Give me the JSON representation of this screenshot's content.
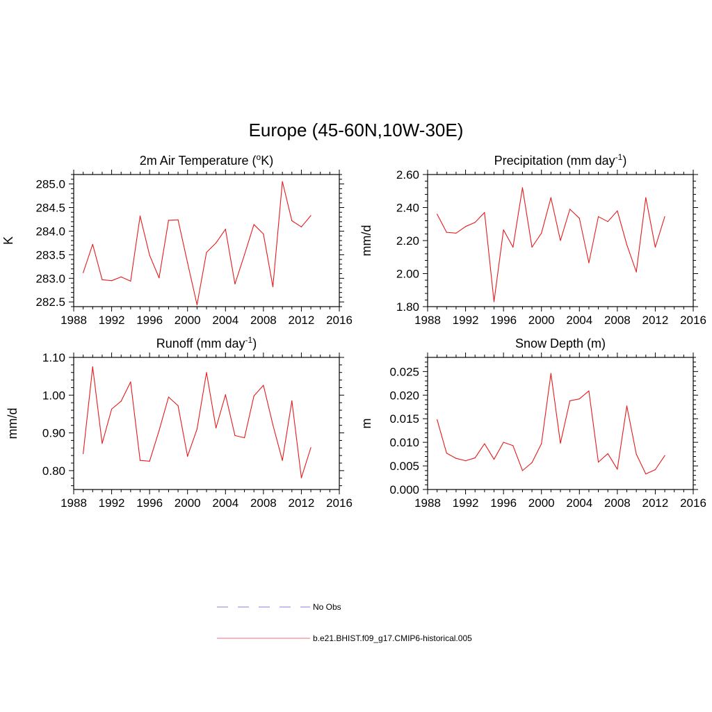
{
  "title": "Europe (45-60N,10W-30E)",
  "legend": [
    {
      "label": "No Obs",
      "color": "#9a9ae8",
      "dashed": true
    },
    {
      "label": "b.e21.BHIST.f09_g17.CMIP6-historical.005",
      "color": "#f28a96",
      "dashed": false
    }
  ],
  "chart_data": [
    {
      "type": "line",
      "title": "2m Air Temperature (",
      "title_sup": "o",
      "title_suffix": "K)",
      "ylabel": "K",
      "xlim": [
        1988,
        2016
      ],
      "ylim": [
        282.4,
        285.2
      ],
      "xticks": [
        1988,
        1992,
        1996,
        2000,
        2004,
        2008,
        2012,
        2016
      ],
      "yticks": [
        282.5,
        283.0,
        283.5,
        284.0,
        284.5,
        285.0
      ],
      "ytick_labels": [
        "282.5",
        "283.0",
        "283.5",
        "284.0",
        "284.5",
        "285.0"
      ],
      "series": [
        {
          "name": "b.e21.BHIST.f09_g17.CMIP6-historical.005",
          "color": "#e41a1c",
          "x": [
            1989,
            1990,
            1991,
            1992,
            1993,
            1994,
            1995,
            1996,
            1997,
            1998,
            1999,
            2000,
            2001,
            2002,
            2003,
            2004,
            2005,
            2006,
            2007,
            2008,
            2009,
            2010,
            2011,
            2012,
            2013
          ],
          "values": [
            283.12,
            283.72,
            282.97,
            282.95,
            283.03,
            282.94,
            284.32,
            283.49,
            283.01,
            284.23,
            284.24,
            283.33,
            282.44,
            283.55,
            283.75,
            284.04,
            282.88,
            283.5,
            284.14,
            283.94,
            282.82,
            285.05,
            284.22,
            284.09,
            284.33
          ]
        }
      ]
    },
    {
      "type": "line",
      "title": "Precipitation (mm day",
      "title_sup": "-1",
      "title_suffix": ")",
      "ylabel": "mm/d",
      "xlim": [
        1988,
        2016
      ],
      "ylim": [
        1.8,
        2.6
      ],
      "xticks": [
        1988,
        1992,
        1996,
        2000,
        2004,
        2008,
        2012,
        2016
      ],
      "yticks": [
        1.8,
        2.0,
        2.2,
        2.4,
        2.6
      ],
      "ytick_labels": [
        "1.80",
        "2.00",
        "2.20",
        "2.40",
        "2.60"
      ],
      "series": [
        {
          "name": "b.e21.BHIST.f09_g17.CMIP6-historical.005",
          "color": "#e41a1c",
          "x": [
            1989,
            1990,
            1991,
            1992,
            1993,
            1994,
            1995,
            1996,
            1997,
            1998,
            1999,
            2000,
            2001,
            2002,
            2003,
            2004,
            2005,
            2006,
            2007,
            2008,
            2009,
            2010,
            2011,
            2012,
            2013
          ],
          "values": [
            2.36,
            2.25,
            2.245,
            2.285,
            2.31,
            2.37,
            1.83,
            2.265,
            2.16,
            2.52,
            2.16,
            2.245,
            2.46,
            2.2,
            2.39,
            2.335,
            2.065,
            2.345,
            2.315,
            2.38,
            2.175,
            2.01,
            2.46,
            2.16,
            2.345
          ]
        }
      ]
    },
    {
      "type": "line",
      "title": "Runoff (mm day",
      "title_sup": "-1",
      "title_suffix": ")",
      "ylabel": "mm/d",
      "xlim": [
        1988,
        2016
      ],
      "ylim": [
        0.75,
        1.1
      ],
      "xticks": [
        1988,
        1992,
        1996,
        2000,
        2004,
        2008,
        2012,
        2016
      ],
      "yticks": [
        0.8,
        0.9,
        1.0,
        1.1
      ],
      "ytick_labels": [
        "0.80",
        "0.90",
        "1.00",
        "1.10"
      ],
      "series": [
        {
          "name": "b.e21.BHIST.f09_g17.CMIP6-historical.005",
          "color": "#e41a1c",
          "x": [
            1989,
            1990,
            1991,
            1992,
            1993,
            1994,
            1995,
            1996,
            1997,
            1998,
            1999,
            2000,
            2001,
            2002,
            2003,
            2004,
            2005,
            2006,
            2007,
            2008,
            2009,
            2010,
            2011,
            2012,
            2013
          ],
          "values": [
            0.845,
            1.075,
            0.872,
            0.963,
            0.984,
            1.035,
            0.827,
            0.825,
            0.906,
            0.995,
            0.972,
            0.838,
            0.91,
            1.06,
            0.913,
            1.001,
            0.893,
            0.887,
            0.998,
            1.026,
            0.921,
            0.827,
            0.985,
            0.781,
            0.861
          ]
        }
      ]
    },
    {
      "type": "line",
      "title": "Snow Depth (m)",
      "title_sup": "",
      "title_suffix": "",
      "ylabel": "m",
      "xlim": [
        1988,
        2016
      ],
      "ylim": [
        0.0,
        0.028
      ],
      "xticks": [
        1988,
        1992,
        1996,
        2000,
        2004,
        2008,
        2012,
        2016
      ],
      "yticks": [
        0.0,
        0.005,
        0.01,
        0.015,
        0.02,
        0.025
      ],
      "ytick_labels": [
        "0.000",
        "0.005",
        "0.010",
        "0.015",
        "0.020",
        "0.025"
      ],
      "series": [
        {
          "name": "b.e21.BHIST.f09_g17.CMIP6-historical.005",
          "color": "#e41a1c",
          "x": [
            1989,
            1990,
            1991,
            1992,
            1993,
            1994,
            1995,
            1996,
            1997,
            1998,
            1999,
            2000,
            2001,
            2002,
            2003,
            2004,
            2005,
            2006,
            2007,
            2008,
            2009,
            2010,
            2011,
            2012,
            2013
          ],
          "values": [
            0.0148,
            0.0077,
            0.0066,
            0.0061,
            0.0067,
            0.0097,
            0.0064,
            0.01,
            0.0093,
            0.004,
            0.0057,
            0.0097,
            0.0246,
            0.0098,
            0.0188,
            0.0192,
            0.0209,
            0.0058,
            0.0076,
            0.0043,
            0.0177,
            0.0075,
            0.0033,
            0.0042,
            0.0072
          ]
        }
      ]
    }
  ]
}
